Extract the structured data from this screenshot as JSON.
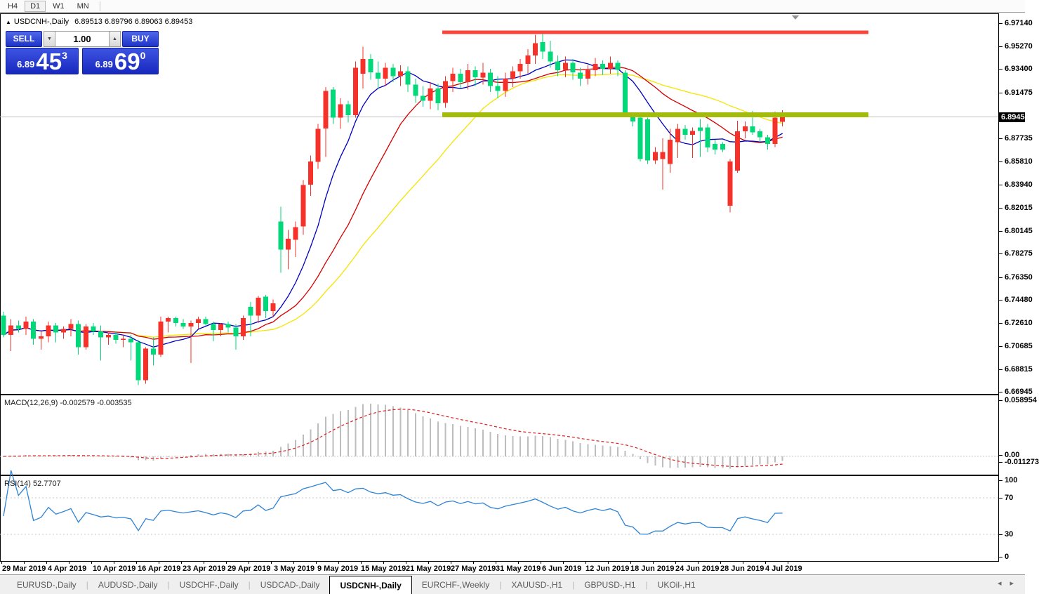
{
  "toolbar": {
    "timeframes": [
      {
        "label": "H4",
        "active": false
      },
      {
        "label": "D1",
        "active": true
      },
      {
        "label": "W1",
        "active": false
      },
      {
        "label": "MN",
        "active": false
      }
    ]
  },
  "header": {
    "symbol": "USDCNH-,Daily",
    "ohlc": "6.89513 6.89796 6.89063 6.89453",
    "collapse_icon": "▲"
  },
  "trade_panel": {
    "sell_label": "SELL",
    "buy_label": "BUY",
    "volume": "1.00",
    "dec_icon": "▼",
    "inc_icon": "▲",
    "sell_price": {
      "base": "6.89",
      "big": "45",
      "sup": "3"
    },
    "buy_price": {
      "base": "6.89",
      "big": "69",
      "sup": "0"
    }
  },
  "chart": {
    "price_axis_labels": [
      "6.97140",
      "6.95270",
      "6.93400",
      "6.91475",
      "6.87735",
      "6.85810",
      "6.83940",
      "6.82015",
      "6.80145",
      "6.78275",
      "6.76350",
      "6.74480",
      "6.72610",
      "6.70685",
      "6.68815",
      "6.66945"
    ],
    "current_price": "6.89453",
    "colors": {
      "bull": "#f53129",
      "bear": "#00d87a",
      "ma_blue": "#0000c0",
      "ma_red": "#d40000",
      "ma_yellow": "#f5e400",
      "resistance": "#f9463c",
      "support": "#a3bb0b",
      "price_line": "#c0c0c0",
      "marker": "#909090"
    },
    "ma_periods": {
      "blue": 8,
      "red": 17,
      "yellow": 28
    },
    "levels": {
      "resistance_price": 6.9639,
      "support_price": 6.8963,
      "x_start": 630,
      "x_end": 1237
    },
    "chart_data": {
      "type": "candlestick",
      "symbol": "USDCNH",
      "timeframe": "Daily",
      "ylim": [
        6.664,
        6.976
      ],
      "candles": [
        [
          6.732,
          6.735,
          6.714,
          6.716
        ],
        [
          6.716,
          6.729,
          6.703,
          6.724
        ],
        [
          6.724,
          6.728,
          6.718,
          6.721
        ],
        [
          6.721,
          6.731,
          6.716,
          6.727
        ],
        [
          6.727,
          6.729,
          6.708,
          6.713
        ],
        [
          6.713,
          6.719,
          6.704,
          6.715
        ],
        [
          6.715,
          6.727,
          6.71,
          6.724
        ],
        [
          6.724,
          6.726,
          6.71,
          6.718
        ],
        [
          6.718,
          6.723,
          6.713,
          6.721
        ],
        [
          6.721,
          6.729,
          6.715,
          6.725
        ],
        [
          6.725,
          6.728,
          6.7,
          6.706
        ],
        [
          6.706,
          6.725,
          6.704,
          6.723
        ],
        [
          6.723,
          6.726,
          6.716,
          6.719
        ],
        [
          6.719,
          6.724,
          6.695,
          6.714
        ],
        [
          6.714,
          6.718,
          6.708,
          6.716
        ],
        [
          6.716,
          6.719,
          6.709,
          6.712
        ],
        [
          6.712,
          6.716,
          6.706,
          6.713
        ],
        [
          6.713,
          6.716,
          6.695,
          6.71
        ],
        [
          6.71,
          6.712,
          6.675,
          6.679
        ],
        [
          6.679,
          6.706,
          6.676,
          6.705
        ],
        [
          6.705,
          6.714,
          6.691,
          6.7
        ],
        [
          6.7,
          6.731,
          6.698,
          6.727
        ],
        [
          6.727,
          6.731,
          6.718,
          6.73
        ],
        [
          6.73,
          6.731,
          6.723,
          6.726
        ],
        [
          6.726,
          6.729,
          6.721,
          6.723
        ],
        [
          6.723,
          6.728,
          6.693,
          6.726
        ],
        [
          6.726,
          6.731,
          6.721,
          6.729
        ],
        [
          6.729,
          6.731,
          6.724,
          6.725
        ],
        [
          6.725,
          6.727,
          6.711,
          6.72
        ],
        [
          6.72,
          6.726,
          6.715,
          6.725
        ],
        [
          6.725,
          6.727,
          6.718,
          6.722
        ],
        [
          6.722,
          6.725,
          6.704,
          6.715
        ],
        [
          6.715,
          6.732,
          6.712,
          6.73
        ],
        [
          6.739,
          6.743,
          6.715,
          6.732
        ],
        [
          6.732,
          6.748,
          6.726,
          6.7466
        ],
        [
          6.7474,
          6.749,
          6.73,
          6.7356
        ],
        [
          6.7356,
          6.745,
          6.731,
          6.742
        ],
        [
          6.809,
          6.821,
          6.767,
          6.786
        ],
        [
          6.786,
          6.802,
          6.77,
          6.795
        ],
        [
          6.794,
          6.809,
          6.78,
          6.8045
        ],
        [
          6.805,
          6.843,
          6.798,
          6.839
        ],
        [
          6.839,
          6.863,
          6.83,
          6.858
        ],
        [
          6.858,
          6.889,
          6.852,
          6.885
        ],
        [
          6.885,
          6.919,
          6.862,
          6.916
        ],
        [
          6.917,
          6.919,
          6.889,
          6.894
        ],
        [
          6.894,
          6.91,
          6.885,
          6.905
        ],
        [
          6.905,
          6.908,
          6.89,
          6.896
        ],
        [
          6.896,
          6.94,
          6.894,
          6.935
        ],
        [
          6.93,
          6.952,
          6.918,
          6.942
        ],
        [
          6.942,
          6.946,
          6.925,
          6.931
        ],
        [
          6.931,
          6.94,
          6.918,
          6.926
        ],
        [
          6.926,
          6.939,
          6.92,
          6.935
        ],
        [
          6.935,
          6.938,
          6.923,
          6.928
        ],
        [
          6.928,
          6.937,
          6.92,
          6.932
        ],
        [
          6.932,
          6.936,
          6.915,
          6.921
        ],
        [
          6.921,
          6.926,
          6.906,
          6.912
        ],
        [
          6.912,
          6.92,
          6.903,
          6.908
        ],
        [
          6.908,
          6.923,
          6.901,
          6.918
        ],
        [
          6.918,
          6.922,
          6.9,
          6.906
        ],
        [
          6.906,
          6.928,
          6.902,
          6.924
        ],
        [
          6.924,
          6.935,
          6.915,
          6.93
        ],
        [
          6.93,
          6.934,
          6.918,
          6.923
        ],
        [
          6.923,
          6.938,
          6.917,
          6.933
        ],
        [
          6.933,
          6.936,
          6.92,
          6.927
        ],
        [
          6.927,
          6.939,
          6.921,
          6.931
        ],
        [
          6.931,
          6.934,
          6.915,
          6.92
        ],
        [
          6.92,
          6.928,
          6.91,
          6.916
        ],
        [
          6.916,
          6.931,
          6.911,
          6.926
        ],
        [
          6.926,
          6.936,
          6.919,
          6.932
        ],
        [
          6.932,
          6.942,
          6.926,
          6.938
        ],
        [
          6.938,
          6.95,
          6.93,
          6.945
        ],
        [
          6.945,
          6.962,
          6.938,
          6.955
        ],
        [
          6.956,
          6.965,
          6.942,
          6.948
        ],
        [
          6.948,
          6.957,
          6.935,
          6.94
        ],
        [
          6.94,
          6.945,
          6.928,
          6.933
        ],
        [
          6.933,
          6.944,
          6.927,
          6.939
        ],
        [
          6.939,
          6.942,
          6.925,
          6.931
        ],
        [
          6.931,
          6.935,
          6.92,
          6.926
        ],
        [
          6.926,
          6.937,
          6.921,
          6.933
        ],
        [
          6.933,
          6.943,
          6.928,
          6.938
        ],
        [
          6.938,
          6.941,
          6.929,
          6.934
        ],
        [
          6.934,
          6.944,
          6.93,
          6.939
        ],
        [
          6.939,
          6.941,
          6.928,
          6.933
        ],
        [
          6.931,
          6.933,
          6.895,
          6.897
        ],
        [
          6.895,
          6.897,
          6.887,
          6.891
        ],
        [
          6.894,
          6.895,
          6.858,
          6.86
        ],
        [
          6.8926,
          6.894,
          6.856,
          6.859
        ],
        [
          6.859,
          6.87,
          6.856,
          6.866
        ],
        [
          6.86,
          6.877,
          6.835,
          6.866
        ],
        [
          6.856,
          6.885,
          6.849,
          6.876
        ],
        [
          6.874,
          6.889,
          6.861,
          6.885
        ],
        [
          6.885,
          6.888,
          6.876,
          6.88
        ],
        [
          6.88,
          6.886,
          6.861,
          6.883
        ],
        [
          6.886,
          6.893,
          6.862,
          6.883
        ],
        [
          6.886,
          6.889,
          6.866,
          6.8695
        ],
        [
          6.8724,
          6.876,
          6.864,
          6.868
        ],
        [
          6.8724,
          6.874,
          6.866,
          6.868
        ],
        [
          6.8218,
          6.86,
          6.8165,
          6.858
        ],
        [
          6.8506,
          6.8915,
          6.849,
          6.8829
        ],
        [
          6.8829,
          6.891,
          6.877,
          6.887
        ],
        [
          6.887,
          6.8995,
          6.88,
          6.882
        ],
        [
          6.8829,
          6.885,
          6.874,
          6.878
        ],
        [
          6.878,
          6.88,
          6.868,
          6.8724
        ],
        [
          6.8724,
          6.899,
          6.87,
          6.894
        ],
        [
          6.8906,
          6.9,
          6.887,
          6.89453
        ]
      ]
    }
  },
  "macd": {
    "name_label": "MACD(12,26,9)",
    "values": "-0.002579 -0.003535",
    "params": {
      "fast": 12,
      "slow": 26,
      "signal": 9
    },
    "axis_labels": [
      {
        "text": "0.058954",
        "y": 570
      },
      {
        "text": "0.00",
        "y": 648
      },
      {
        "text": "-0.011273",
        "y": 658
      }
    ],
    "bar_color": "#bdbdbd",
    "signal_color": "#dd2020"
  },
  "rsi": {
    "name_label": "RSI(14)",
    "value": "52.7707",
    "period": 14,
    "axis_labels": [
      {
        "text": "100",
        "y": 684
      },
      {
        "text": "70",
        "y": 709
      },
      {
        "text": "30",
        "y": 761
      },
      {
        "text": "0",
        "y": 793
      }
    ],
    "line_color": "#2d83d5",
    "grid_levels": [
      70,
      30
    ]
  },
  "time_axis": {
    "labels": [
      {
        "text": "29 Mar 2019",
        "x": 3
      },
      {
        "text": "4 Apr 2019",
        "x": 68
      },
      {
        "text": "10 Apr 2019",
        "x": 132
      },
      {
        "text": "16 Apr 2019",
        "x": 196
      },
      {
        "text": "23 Apr 2019",
        "x": 260
      },
      {
        "text": "29 Apr 2019",
        "x": 324
      },
      {
        "text": "3 May 2019",
        "x": 390
      },
      {
        "text": "9 May 2019",
        "x": 452
      },
      {
        "text": "15 May 2019",
        "x": 514
      },
      {
        "text": "21 May 2019",
        "x": 578
      },
      {
        "text": "27 May 2019",
        "x": 642
      },
      {
        "text": "31 May 2019",
        "x": 706
      },
      {
        "text": "6 Jun 2019",
        "x": 772
      },
      {
        "text": "12 Jun 2019",
        "x": 834
      },
      {
        "text": "18 Jun 2019",
        "x": 898
      },
      {
        "text": "24 Jun 2019",
        "x": 962
      },
      {
        "text": "28 Jun 2019",
        "x": 1026
      },
      {
        "text": "4 Jul 2019",
        "x": 1090
      }
    ]
  },
  "tabs": {
    "items": [
      {
        "label": "EURUSD-,Daily",
        "active": false
      },
      {
        "label": "AUDUSD-,Daily",
        "active": false
      },
      {
        "label": "USDCHF-,Daily",
        "active": false
      },
      {
        "label": "USDCAD-,Daily",
        "active": false
      },
      {
        "label": "USDCNH-,Daily",
        "active": true
      },
      {
        "label": "EURCHF-,Weekly",
        "active": false
      },
      {
        "label": "XAUUSD-,H1",
        "active": false
      },
      {
        "label": "GBPUSD-,H1",
        "active": false
      },
      {
        "label": "UKOil-,H1",
        "active": false
      }
    ],
    "scroll_left_icon": "◂",
    "scroll_right_icon": "▸"
  }
}
